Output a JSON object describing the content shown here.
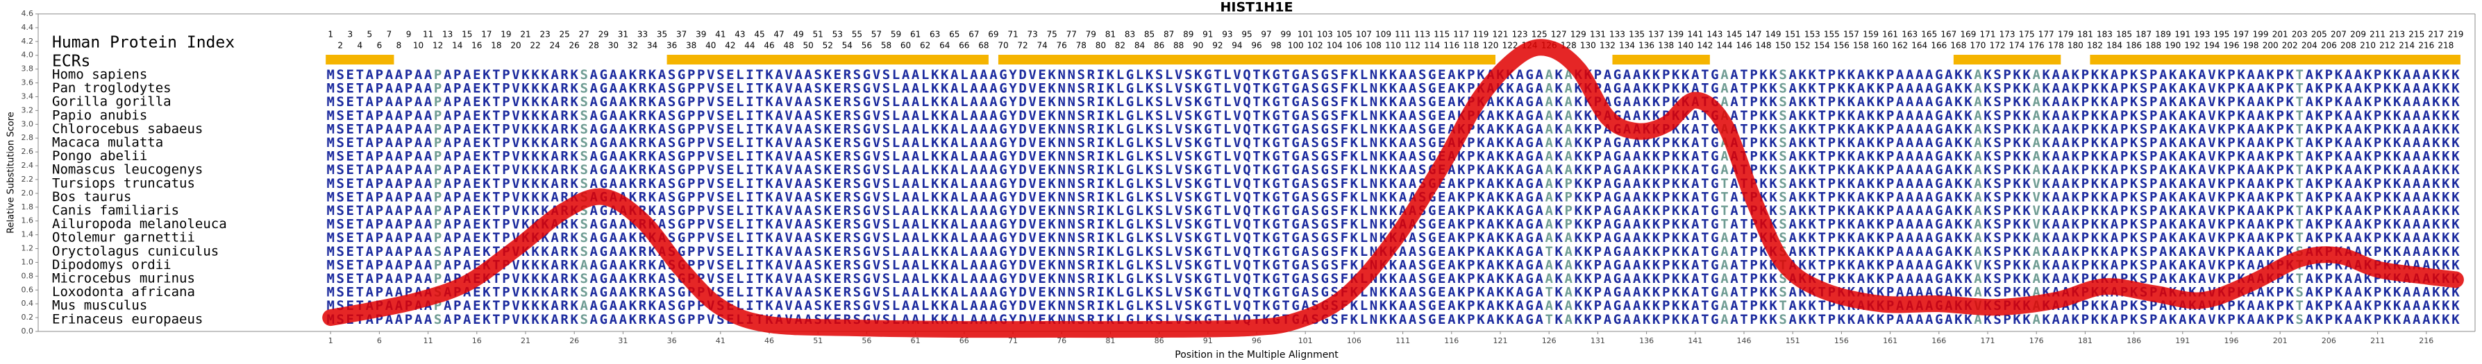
{
  "chart_data": {
    "type": "line",
    "title": "HIST1H1E",
    "xlabel": "Position in the Multiple Alignment",
    "ylabel": "Relative Substitution Score",
    "xlim": [
      -29,
      221
    ],
    "ylim": [
      0,
      4.6
    ],
    "xticks": [
      1,
      6,
      11,
      16,
      21,
      26,
      31,
      36,
      41,
      46,
      51,
      56,
      61,
      66,
      71,
      76,
      81,
      86,
      91,
      96,
      101,
      106,
      111,
      116,
      121,
      126,
      131,
      136,
      141,
      146,
      151,
      156,
      161,
      166,
      171,
      176,
      181,
      186,
      191,
      196,
      201,
      206,
      211,
      216
    ],
    "yticks": [
      {
        "value": 0,
        "label": "0.0"
      },
      {
        "value": 0.2,
        "label": "0.2"
      },
      {
        "value": 0.4,
        "label": "0.4"
      },
      {
        "value": 0.6,
        "label": "0.6"
      },
      {
        "value": 0.8,
        "label": "0.8"
      },
      {
        "value": 1,
        "label": "1.0"
      },
      {
        "value": 1.2,
        "label": "1.2"
      },
      {
        "value": 1.4,
        "label": "1.4"
      },
      {
        "value": 1.6,
        "label": "1.6"
      },
      {
        "value": 1.8,
        "label": "1.8"
      },
      {
        "value": 2,
        "label": "2.0"
      },
      {
        "value": 2.2,
        "label": "2.2"
      },
      {
        "value": 2.4,
        "label": "2.4"
      },
      {
        "value": 2.6,
        "label": "2.6"
      },
      {
        "value": 2.8,
        "label": "2.8"
      },
      {
        "value": 3,
        "label": "3.0"
      },
      {
        "value": 3.2,
        "label": "3.2"
      },
      {
        "value": 3.4,
        "label": "3.4"
      },
      {
        "value": 3.6,
        "label": "3.6"
      },
      {
        "value": 3.8,
        "label": "3.8"
      },
      {
        "value": 4,
        "label": "4.0"
      },
      {
        "value": 4.2,
        "label": "4.2"
      },
      {
        "value": 4.4,
        "label": "4.4"
      },
      {
        "value": 4.6,
        "label": "4.6"
      }
    ],
    "x": [
      1,
      5,
      10,
      15,
      20,
      25,
      29,
      33,
      37,
      41,
      46,
      55,
      65,
      75,
      85,
      95,
      100,
      105,
      110,
      115,
      119,
      123,
      126,
      129,
      132,
      135,
      138,
      141,
      144,
      147,
      150,
      154,
      160,
      166,
      172,
      178,
      183,
      188,
      193,
      198,
      203,
      207,
      211,
      216,
      219
    ],
    "values": [
      0.2,
      0.3,
      0.45,
      0.7,
      1.2,
      1.75,
      1.95,
      1.6,
      0.9,
      0.35,
      0.1,
      0.05,
      0.03,
      0.03,
      0.03,
      0.05,
      0.15,
      0.5,
      1.3,
      2.4,
      3.4,
      4.0,
      4.1,
      3.8,
      3.1,
      2.9,
      3.0,
      3.35,
      3.0,
      1.9,
      1.0,
      0.6,
      0.4,
      0.4,
      0.35,
      0.45,
      0.65,
      0.55,
      0.45,
      0.7,
      1.05,
      1.1,
      0.9,
      0.8,
      0.75
    ],
    "color": "#e00000",
    "index_label": "Human Protein Index",
    "index": [
      1,
      2,
      3,
      4,
      5,
      6,
      7,
      8,
      9,
      10,
      11,
      12,
      13,
      14,
      15,
      16,
      17,
      18,
      19,
      20,
      21,
      22,
      23,
      24,
      25,
      26,
      27,
      28,
      29,
      30,
      31,
      32,
      33,
      34,
      35,
      36,
      37,
      38,
      39,
      40,
      41,
      42,
      43,
      44,
      45,
      46,
      47,
      48,
      49,
      50,
      51,
      52,
      53,
      54,
      55,
      56,
      57,
      58,
      59,
      60,
      61,
      62,
      63,
      64,
      65,
      66,
      67,
      68,
      69,
      70,
      71,
      72,
      73,
      74,
      75,
      76,
      77,
      78,
      79,
      80,
      81,
      82,
      83,
      84,
      85,
      86,
      87,
      88,
      89,
      90,
      91,
      92,
      93,
      94,
      95,
      96,
      97,
      98,
      99,
      100,
      101,
      102,
      103,
      104,
      105,
      106,
      107,
      108,
      109,
      110,
      111,
      112,
      113,
      114,
      115,
      116,
      117,
      118,
      119,
      120,
      121,
      122,
      123,
      124,
      125,
      126,
      127,
      128,
      129,
      130,
      131,
      132,
      133,
      134,
      135,
      136,
      137,
      138,
      139,
      140,
      141,
      142,
      143,
      144,
      145,
      146,
      147,
      148,
      149,
      150,
      151,
      152,
      153,
      154,
      155,
      156,
      157,
      158,
      159,
      160,
      161,
      162,
      163,
      164,
      165,
      166,
      167,
      168,
      169,
      170,
      171,
      172,
      173,
      174,
      175,
      176,
      177,
      178,
      179,
      180,
      181,
      182,
      183,
      184,
      185,
      186,
      187,
      188,
      189,
      190,
      191,
      192,
      193,
      194,
      195,
      196,
      197,
      198,
      199,
      200,
      201,
      202,
      203,
      204,
      205,
      206,
      207,
      208,
      209,
      210,
      211,
      212,
      213,
      214,
      215,
      216,
      217,
      218,
      219
    ],
    "ecr_label": "ECRs",
    "ecr_color": "#f5b400",
    "ecrs": [
      [
        1,
        7
      ],
      [
        36,
        68
      ],
      [
        70,
        120
      ],
      [
        133,
        142
      ],
      [
        168,
        178
      ],
      [
        182,
        219
      ]
    ],
    "species": [
      "Homo sapiens",
      "Pan troglodytes",
      "Gorilla gorilla",
      "Papio anubis",
      "Chlorocebus sabaeus",
      "Macaca mulatta",
      "Pongo abelii",
      "Nomascus leucogenys",
      "Tursiops truncatus",
      "Bos taurus",
      "Canis familiaris",
      "Ailuropoda melanoleuca",
      "Otolemur garnettii",
      "Oryctolagus cuniculus",
      "Dipodomys ordii",
      "Microcebus murinus",
      "Loxodonta africana",
      "Mus musculus",
      "Erinaceus europaeus"
    ],
    "sequences": [
      "MSETAPAAPAAPAPAEKTPVKKKARKSAGAAKRKASGPPVSELITKAVAASKERSGVSLAALKKALAAAGYDVEKNNSRIKLGLKSLVSKGTLVQTKGTGASGSFKLNKKAASGEAKPKAKKAGAAKAKKPAGAAKKPKKATGAATPKKSAKKTPKKAKKPAAAAGAKKAKSPKKAKAAKPKKAPKSPAKAKAVKPKAAKPKTAKPKAAKPKKAAAKKK",
      "MSETAPAAPAAPAPAEKTPVKKKARKSAGAAKRKASGPPVSELITKAVAASKERSGVSLAALKKALAAAGYDVEKNNSRIKLGLKSLVSKGTLVQTKGTGASGSFKLNKKAASGEAKPKAKKAGAAKAKKPAGAAKKPKKATGAATPKKSAKKTPKKAKKPAAAAGAKKAKSPKKAKAAKPKKAPKSPAKAKAVKPKAAKPKTAKPKAAKPKKAAAKKK",
      "MSETAPAAPAAPAPAEKTPVKKKARKSAGAAKRKASGPPVSELITKAVAASKERSGVSLAALKKALAAAGYDVEKNNSRIKLGLKSLVSKGTLVQTKGTGASGSFKLNKKAASGEAKPKAKKAGAAKAKKPAGAAKKPKKATGAATPKKSAKKTPKKAKKPAAAAGAKKAKSPKKAKAAKPKKAPKSPAKAKAVKPKAAKPKTAKPKAAKPKKAAAKKK",
      "MSETAPAAPAAPAPAEKTPVKKKARKSAGAAKRKASGPPVSELITKAVAASKERSGVSLAALKKALAAAGYDVEKNNSRIKLGLKSLVSKGTLVQTKGTGASGSFKLNKKAASGEAKPKAKKAGAAKAKKPAGAAKKPKKATGAATPKKSAKKTPKKAKKPAAAAGAKKAKSPKKAKAAKPKKAPKSPAKAKAVKPKAAKPKTAKPKAAKPKKAAAKKK",
      "MSETAPAAPAAPAPAEKTPVKKKARKSAGAAKRKASGPPVSELITKAVAASKERSGVSLAALKKALAAAGYDVEKNNSRIKLGLKSLVSKGTLVQTKGTGASGSFKLNKKAASGEAKPKAKKAGAAKAKKPAGAAKKPKKATGAATPKKSAKKTPKKAKKPAAAAGAKKAKSPKKAKAAKPKKAPKSPAKAKAVKPKAAKPKTAKPKAAKPKKAAAKKK",
      "MSETAPAAPAAPAPAEKTPVKKKARKSAGAAKRKASGPPVSELITKAVAASKERSGVSLAALKKALAAAGYDVEKNNSRIKLGLKSLVSKGTLVQTKGTGASGSFKLNKKAASGEAKPKAKKAGAAKAKKPAGAAKKPKKATGAATPKKSAKKTPKKAKKPAAAAGAKKAKSPKKAKAAKPKKAPKSPAKAKAVKPKAAKPKTAKPKAAKPKKAAAKKK",
      "MSETAPAAPAAPAPAEKTPVKKKARKSAGAAKRKASGPPVSELITKAVAASKERSGVSLAALKKALAAAGYDVEKNNSRIKLGLKSLVSKGTLVQTKGTGASGSFKLNKKAASGEAKPKAKKAGAAKAKKPAGAAKKPKKATGAATPKKSAKKTPKKAKKPAAAAGAKKAKSPKKAKAAKPKKAPKSPAKAKAVKPKAAKPKTAKPKAAKPKKAAAKKK",
      "MSETAPAAPAAPAPAEKTPVKKKARKSAGAAKRKASGPPVSELITKAVAASKERSGVSLAALKKALAAAGYDVEKNNSRIKLGLKSLVSKGTLVQTKGTGASGSFKLNKKAASGEAKPKAKKAGAAKAKKPAGAAKKPKKATGAATPKKSAKKTPKKAKKPAAAAGAKKAKSPKKAKAAKPKKAPKSPAKAKAVKPKAAKPKTAKPKAAKPKKAAAKKK",
      "MSETAPAAPAAPAPAEKTPVKKKARKSAGAAKRKASGPPVSELITKAVAASKERSGVSLAALKKALAAAGYDVEKNNSRIKLGLKSLVSKGTLVQTKGTGASGSFKLNKKAASGEAKPKAKKAGAAKPKKPAGAAKKPKKATGTATPKKSAKKTPKKAKKPAAAAGAKKAKSPKKVKAAKPKKAPKSPAKAKAVKPKAAKPKTAKPKAAKPKKAAAKKK",
      "MSETAPAAPAAPAPAEKTPVKKKARKSAGAAKRKASGPPVSELITKAVAASKERSGVSLAALKKALAAAGYDVEKNNSRIKLGLKSLVSKGTLVQTKGTGASGSFKLNKKAASGEAKPKAKKAGAAKPKKPAGAAKKPKKATGTATPKKSAKKTPKKAKKPAAAAGAKKAKSPKKVKAAKPKKAPKSPAKAKAVKPKAAKPKTAKPKAAKPKKAAAKKK",
      "MSETAPAAPAAPAPAEKTPVKKKARKSAGAAKRKASGPPVSELITKAVAASKERSGVSLAALKKALAAAGYDVEKNNSRIKLGLKSLVSKGTLVQTKGTGASGSFKLNKKAASGEAKPKAKKAGAAKPKKPAGAAKKPKKATGTATPKKSAKKTPKKAKKPAAAAGAKKAKSPKKVKAAKPKKAPKSPAKAKAVKPKAAKPKTAKPKAAKPKKAAAKKK",
      "MSETAPAAPAAPAPAEKTPVKKKARKSAGAAKRKASGPPVSELITKAVAASKERSGVSLAALKKALAAAGYDVEKNNSRIKLGLKSLVSKGTLVQTKGTGASGSFKLNKKAASGEAKPKAKKAGAAKPKKPAGAAKKPKKATGTATPKKSAKKTPKKAKKPAAAAGAKKAKSPKKVKAAKPKKAPKSPAKAKAVKPKAAKPKTAKPKAAKPKKAAAKKK",
      "MSETAPAAPAAPAPAEKTPVKKKARKSAGAAKRKASGPPVSELITKAVAASKERSGVSLAALKKALAAAGYDVEKNNSRIKLGLKSLVSKGTLVQTKGTGASGSFKLNKKAASGEAKPKAKKAGAAKAKKPAGAAKKPKKATGAATPKKSAKKTPKKAKKPAAAAGAKKAKSPKKAKAAKPKKAPKSPAKAKAVKPKAAKPKTAKPKAAKPKKAAAKKK",
      "MSETAPAAPAASAPAEKTPVKKKARKSAGAAKRKASGPPVSELITKAVAASKERSGVSLAALKKALAAAGYDVEKNNSRIKLGLKSLVSKGTLVQTKGTGASGSFKLNKKAASGEAKPKAKKAGATKAKKPAGAAKKPKKATGAATPKKSAKKTPKKAKKPAAAAGAKKAKSPKKAKAAKPKKAPKSPAKAKAVKPKAAKPKSAKPKAAKPKKAAAKKK",
      "MSETAPAAPAAPAPAEKTPVKKKARKAAGAAKRKASGPPVSELITKAVAASKERSGVSLAALKKALAAAGYDVEKNNSRIKLGLKSLVSKGTLVQTKGTGASGSFKLNKKAASGEAKPKAKKAGAAKAKKPAGAAKKPKKATGAATPKKTAKKTPKKAKKPAAAAGAKKVKSPKKAKAAKPKKAPKSPAKAKAVKPKAAKPKTAKPKAAKPKKAAAKKK",
      "MSETAPAAPAAPAPAEKTPVKKKARKSAGAAKRKASGPPVSELITKAVAASKERSGVSLAALKKALAAAGYDVEKNNSRIKLGLKSLVSKGTLVQTKGTGASGSFKLNKKAASGEAKPKAKKAGAAKAKKPAGAAKKPKKATGAATPKKSAKKTPKKAKKPAAAAGAKKAKSPKKAKAAKPKKAPKSPAKAKAVKPKAAKPKTAKPKAAKPKKAAAKKK",
      "MSETAPAAPAASAPAEKTPVKKKARKSAGAAKRKASGPPVSELITKAVAASKERSGVSLAALKKALAAAGYDVEKNNSRIKLGLKSLVSKGTLVQTKGTGASGSFKLNKKAASGEAKPKAKKAGATKAKKPAGAAKKPKKATGAATPKKSAKKTPKKAKKPAAAAGAKKAKSPKKAKAAKPKKAPKSPAKAKAVKPKAAKPKSAKPKAAKPKKAAAKKK",
      "MSETAPAAPAAPAPAEKTPVKKKARKAAGAAKRKASGPPVSELITKAVAASKERSGVSLAALKKALAAAGYDVEKNNSRIKLGLKSLVSKGTLVQTKGTGASGSFKLNKKAASGEAKPKAKKAGAAKAKKPAGAAKKPKKATGAATPKKTAKKTPKKAKKPAAAAGAKKVKSPKKAKAAKPKKAPKSPAKAKAVKPKAAKPKTAKPKAAKPKKAAAKKK",
      "MSETAPAAPAASAPAEKTPVKKKARKSAGAAKRKASGPPVSELITKAVAASKERSGVSLAALKKALAAAGYDVEKNNSRIKLGLKSLVSKGTLVQTKGTGASGSFKLNKKAASGEAKPKAKKAGATKAKKPAGAAKKPKKATGAATPKKSAKKTPKKAKKPAAAAGAKKAKSPKKAKAAKPKKAPKSPAKAKAVKPKAAKPKSAKPKAAKPKKAAAKKK"
    ]
  }
}
